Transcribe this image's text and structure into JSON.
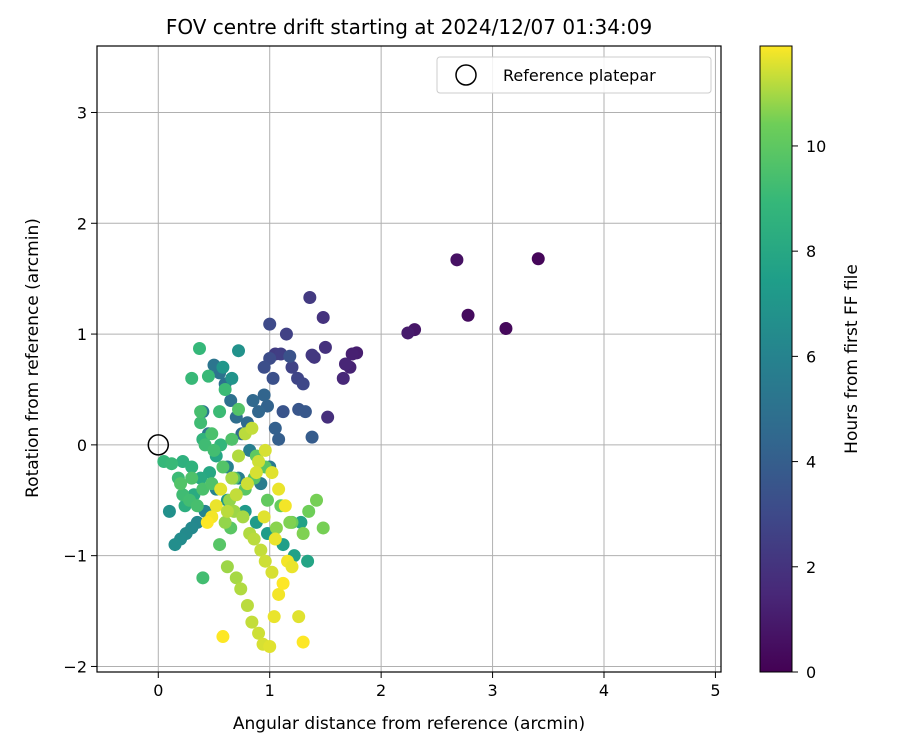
{
  "chart_data": {
    "type": "scatter",
    "title": "FOV centre drift starting at 2024/12/07 01:34:09",
    "xlabel": "Angular distance from reference (arcmin)",
    "ylabel": "Rotation from reference (arcmin)",
    "xlim": [
      -0.55,
      5.05
    ],
    "ylim": [
      -2.05,
      3.6
    ],
    "xticks": [
      0,
      1,
      2,
      3,
      4,
      5
    ],
    "yticks": [
      -2,
      -1,
      0,
      1,
      2,
      3
    ],
    "grid": true,
    "legend": {
      "position": "top-right",
      "entries": [
        "Reference platepar"
      ]
    },
    "reference_point": {
      "x": 0,
      "y": 0,
      "label": "Reference platepar"
    },
    "colorbar": {
      "label": "Hours from first FF file",
      "range": [
        0,
        11.9
      ],
      "ticks": [
        0,
        2,
        4,
        6,
        8,
        10
      ],
      "colormap": "viridis"
    },
    "series": [
      {
        "x": [
          3.41,
          3.12,
          2.78,
          2.68,
          2.3,
          2.24,
          1.78,
          1.74,
          1.72,
          1.68,
          1.66,
          1.52,
          1.5,
          1.48,
          1.4,
          1.38,
          1.36,
          1.05,
          1.1,
          1.15,
          1.2,
          1.25,
          1.3,
          1.0,
          1.0,
          0.95,
          1.03,
          1.18,
          1.12,
          1.26,
          1.32
        ],
        "y": [
          1.68,
          1.05,
          1.17,
          1.67,
          1.04,
          1.01,
          0.83,
          0.82,
          0.7,
          0.73,
          0.6,
          0.25,
          0.88,
          1.15,
          0.79,
          0.81,
          1.33,
          0.82,
          0.82,
          1.0,
          0.7,
          0.6,
          0.55,
          1.09,
          0.78,
          0.7,
          0.6,
          0.8,
          0.3,
          0.32,
          0.3
        ],
        "hours": [
          0.2,
          0.3,
          0.4,
          0.6,
          0.8,
          1.0,
          1.1,
          1.2,
          1.3,
          1.4,
          1.5,
          1.8,
          1.9,
          2.0,
          2.1,
          2.2,
          2.3,
          2.4,
          2.5,
          2.6,
          2.7,
          2.8,
          2.9,
          3.0,
          3.1,
          3.2,
          3.3,
          3.4,
          3.5,
          3.6,
          3.7
        ]
      },
      {
        "x": [
          1.38,
          1.08,
          1.05,
          0.98,
          0.95,
          0.9,
          0.85,
          0.8,
          0.75,
          0.7,
          0.65,
          0.6,
          0.55,
          0.5,
          0.45,
          0.4,
          1.0,
          0.92,
          0.82,
          0.72,
          0.62,
          0.52,
          0.42,
          0.35,
          0.3,
          0.25,
          0.2,
          0.15,
          0.1,
          0.72,
          0.66,
          0.58,
          0.62,
          0.78,
          0.88,
          0.98,
          1.12,
          1.22,
          1.28,
          1.34,
          0.52,
          0.46,
          0.38,
          0.32,
          0.28,
          0.24,
          0.22,
          0.3,
          0.4,
          0.56
        ],
        "y": [
          0.07,
          0.05,
          0.15,
          0.35,
          0.45,
          0.3,
          0.4,
          0.2,
          0.1,
          0.25,
          0.4,
          0.55,
          0.65,
          0.72,
          0.1,
          0.3,
          -0.2,
          -0.35,
          -0.05,
          -0.3,
          -0.2,
          -0.4,
          -0.6,
          -0.7,
          -0.75,
          -0.8,
          -0.85,
          -0.9,
          -0.6,
          0.85,
          0.6,
          0.7,
          -0.5,
          -0.6,
          -0.7,
          -0.8,
          -0.9,
          -1.0,
          -0.7,
          -1.05,
          -0.1,
          -0.25,
          -0.3,
          -0.45,
          -0.5,
          -0.55,
          -0.15,
          -0.2,
          0.05,
          0.0
        ],
        "hours": [
          3.9,
          4.0,
          4.1,
          4.2,
          4.3,
          4.4,
          4.5,
          4.6,
          4.7,
          4.8,
          4.9,
          5.0,
          5.1,
          5.2,
          5.3,
          5.4,
          5.5,
          5.6,
          5.7,
          5.8,
          5.9,
          6.0,
          6.1,
          6.2,
          6.3,
          6.4,
          6.5,
          6.6,
          6.7,
          6.8,
          6.9,
          7.0,
          7.1,
          7.2,
          7.3,
          7.4,
          7.5,
          7.6,
          7.7,
          7.8,
          7.9,
          8.0,
          8.1,
          8.2,
          8.3,
          8.4,
          8.5,
          8.6,
          8.7,
          8.8
        ]
      },
      {
        "x": [
          0.37,
          0.3,
          0.45,
          0.6,
          0.55,
          0.38,
          0.42,
          0.5,
          0.4,
          0.05,
          0.12,
          0.18,
          0.22,
          0.28,
          0.35,
          0.4,
          0.48,
          0.58,
          0.68,
          0.78,
          0.88,
          0.98,
          1.1,
          1.2,
          1.35,
          1.42,
          1.48,
          1.3,
          1.18,
          1.06,
          0.38,
          0.48,
          0.66,
          0.72,
          0.86,
          0.96,
          0.3,
          0.2,
          0.55,
          0.65
        ],
        "y": [
          0.87,
          0.6,
          0.62,
          0.5,
          0.3,
          0.2,
          0.0,
          -0.05,
          -1.2,
          -0.15,
          -0.17,
          -0.3,
          -0.45,
          -0.5,
          -0.55,
          -0.4,
          -0.35,
          -0.2,
          -0.3,
          -0.4,
          -0.1,
          -0.5,
          -0.55,
          -0.7,
          -0.6,
          -0.5,
          -0.75,
          -0.8,
          -0.7,
          -0.75,
          0.3,
          0.1,
          0.05,
          0.32,
          -0.3,
          -0.2,
          -0.3,
          -0.35,
          -0.9,
          -0.75
        ],
        "hours": [
          8.9,
          9.0,
          9.0,
          9.1,
          9.1,
          9.2,
          9.2,
          9.3,
          9.3,
          8.9,
          9.0,
          9.1,
          9.2,
          9.3,
          9.4,
          9.5,
          9.6,
          9.7,
          9.8,
          9.9,
          10.0,
          10.1,
          10.2,
          10.3,
          10.4,
          10.5,
          10.5,
          10.6,
          10.6,
          10.7,
          9.4,
          9.5,
          9.6,
          9.7,
          9.8,
          9.9,
          9.6,
          9.7,
          9.8,
          9.9
        ]
      },
      {
        "x": [
          0.6,
          0.62,
          0.7,
          0.74,
          0.8,
          0.84,
          0.9,
          0.94,
          1.0,
          1.04,
          1.08,
          1.12,
          1.16,
          1.2,
          1.26,
          1.3,
          0.64,
          0.68,
          0.76,
          0.82,
          0.86,
          0.92,
          0.96,
          1.02,
          0.56,
          0.52,
          0.48,
          0.44,
          0.58,
          0.66,
          0.72,
          0.78,
          0.84,
          0.9,
          0.96,
          1.02,
          1.08,
          1.14,
          0.62,
          0.7,
          0.8,
          0.88,
          0.95,
          1.05
        ],
        "y": [
          -0.7,
          -1.1,
          -1.2,
          -1.3,
          -1.45,
          -1.6,
          -1.7,
          -1.8,
          -1.82,
          -1.55,
          -1.35,
          -1.25,
          -1.05,
          -1.1,
          -1.55,
          -1.78,
          -0.5,
          -0.6,
          -0.65,
          -0.8,
          -0.85,
          -0.95,
          -1.05,
          -1.15,
          -0.4,
          -0.55,
          -0.65,
          -0.7,
          -1.73,
          -0.3,
          -0.1,
          0.1,
          0.15,
          -0.15,
          -0.05,
          -0.25,
          -0.4,
          -0.55,
          -0.6,
          -0.45,
          -0.35,
          -0.25,
          -0.65,
          -0.85
        ],
        "hours": [
          10.8,
          10.9,
          11.0,
          11.1,
          11.2,
          11.3,
          11.4,
          11.5,
          11.6,
          11.7,
          11.8,
          11.9,
          11.8,
          11.7,
          11.6,
          11.9,
          10.8,
          10.9,
          11.0,
          11.1,
          11.2,
          11.3,
          11.4,
          11.5,
          11.6,
          11.7,
          11.8,
          11.9,
          11.9,
          11.0,
          11.1,
          11.2,
          11.3,
          11.4,
          11.5,
          11.6,
          11.7,
          11.8,
          11.2,
          11.3,
          11.4,
          11.5,
          11.6,
          11.7
        ]
      }
    ]
  }
}
